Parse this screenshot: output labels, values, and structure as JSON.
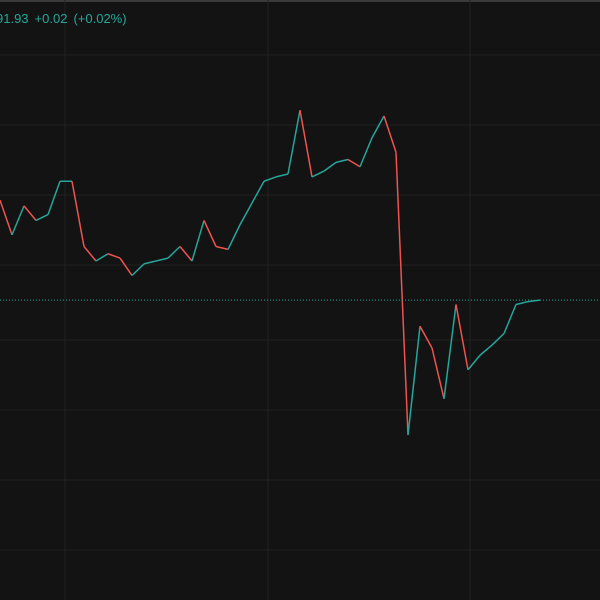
{
  "header": {
    "price": "91.93",
    "change": "+0.02",
    "change_percent": "(+0.02%)"
  },
  "chart_data": {
    "type": "line",
    "ylim": [
      90,
      94
    ],
    "up_color": "#26a69a",
    "down_color": "#ef5350",
    "values": [
      92.62,
      92.38,
      92.58,
      92.48,
      92.52,
      92.75,
      92.75,
      92.3,
      92.2,
      92.25,
      92.22,
      92.1,
      92.18,
      92.2,
      92.22,
      92.3,
      92.2,
      92.48,
      92.3,
      92.28,
      92.45,
      92.6,
      92.75,
      92.78,
      92.8,
      93.24,
      92.78,
      92.82,
      92.88,
      92.9,
      92.85,
      93.05,
      93.2,
      92.95,
      91.0,
      91.75,
      91.6,
      91.25,
      91.9,
      91.45,
      91.55,
      91.62,
      91.7,
      91.9,
      91.92,
      91.93
    ]
  }
}
